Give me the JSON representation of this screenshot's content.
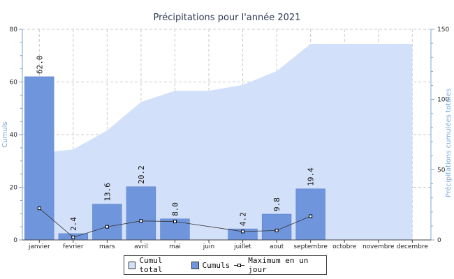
{
  "chart_data": {
    "type": "bar",
    "title": "Précipitations pour l'année 2021",
    "categories": [
      "janvier",
      "fevrier",
      "mars",
      "avril",
      "mai",
      "juin",
      "juillet",
      "aout",
      "septembre",
      "octobre",
      "novembre",
      "decembre"
    ],
    "series": [
      {
        "name": "Cumul total",
        "type": "area",
        "axis": "right",
        "color": "#d3e0f9",
        "values": [
          62.0,
          64.4,
          78.0,
          98.2,
          106.2,
          106.2,
          110.4,
          120.2,
          139.6,
          139.6,
          139.6,
          139.6
        ]
      },
      {
        "name": "Cumuls",
        "type": "bar",
        "axis": "left",
        "color": "#6f95dc",
        "values": [
          62.0,
          2.4,
          13.6,
          20.2,
          8.0,
          null,
          4.2,
          9.8,
          19.4,
          null,
          null,
          null
        ],
        "labels": [
          "62.0",
          "2.4",
          "13.6",
          "20.2",
          "8.0",
          "",
          "4.2",
          "9.8",
          "19.4",
          "",
          "",
          ""
        ]
      },
      {
        "name": "Maximum en un jour",
        "type": "line",
        "axis": "left",
        "color": "#333333",
        "values": [
          12.0,
          1.0,
          5.0,
          7.2,
          7.0,
          null,
          3.2,
          3.6,
          9.0,
          null,
          null,
          null
        ]
      }
    ],
    "ylabel_left": "Cumuls",
    "ylabel_right": "Précipitations cumulées totales",
    "ylim_left": [
      0,
      80
    ],
    "yticks_left": [
      0,
      20,
      40,
      60,
      80
    ],
    "ylim_right": [
      0,
      150
    ],
    "yticks_right": [
      0,
      50,
      100,
      150
    ],
    "grid": true,
    "legend": "bottom-center",
    "colors": {
      "left_axis": "#7a9fd6",
      "right_axis": "#7aaad8",
      "grid": "#c9c9c9"
    }
  }
}
